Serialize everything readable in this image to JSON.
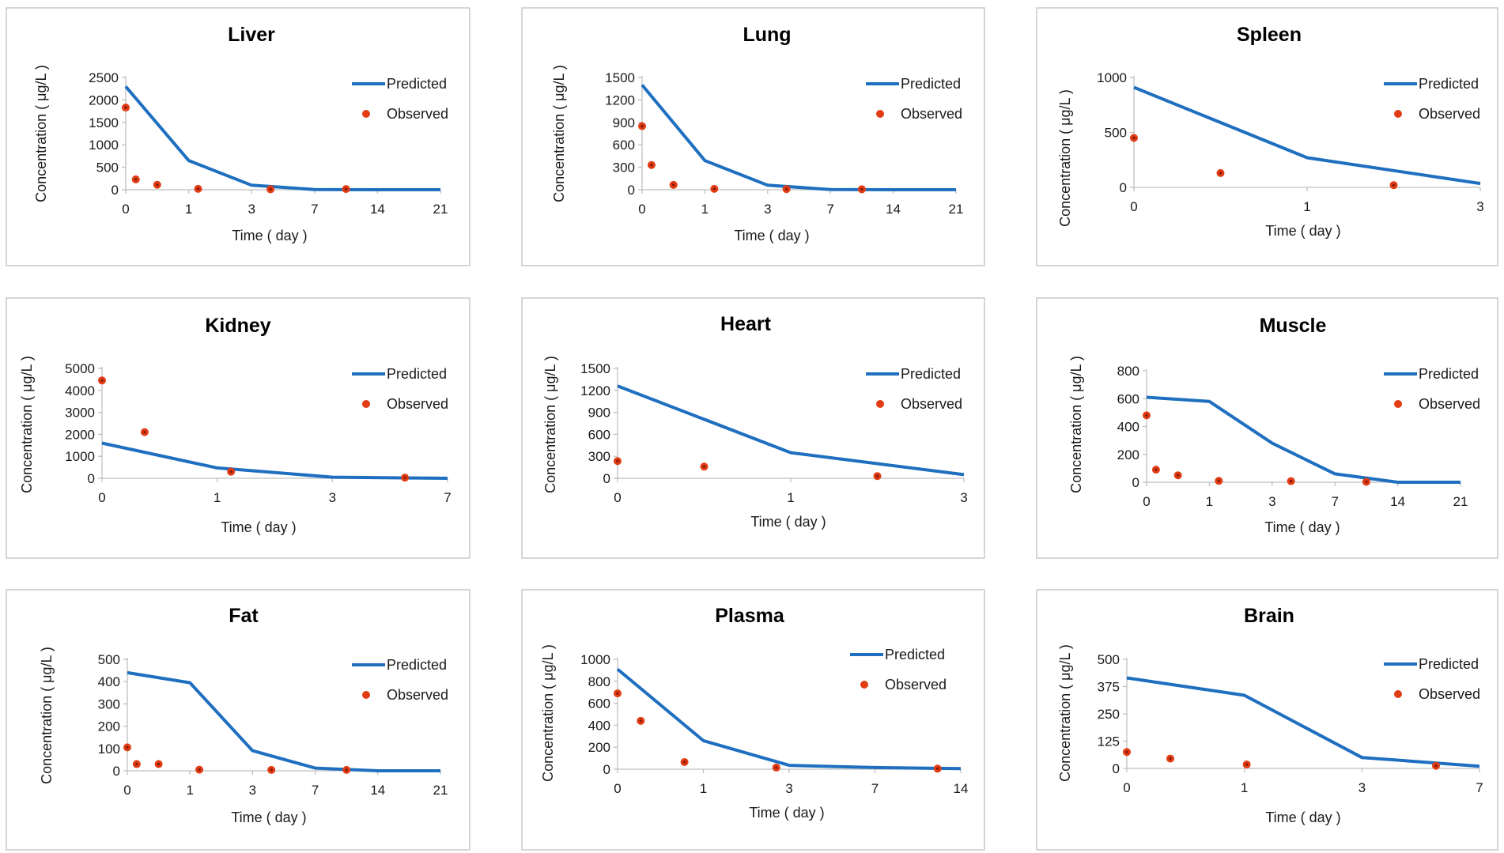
{
  "colors": {
    "predicted": "#1f6fc0",
    "observed": "#e23c14",
    "observed_dot_center": "#8a1c05",
    "frame": "#bfbfbf"
  },
  "chart_data": [
    {
      "type": "line",
      "title": "Liver",
      "xlabel": "Time ( day )",
      "ylabel": "Concentration ( μg/L )",
      "x_categories": [
        "0",
        "1",
        "3",
        "7",
        "14",
        "21"
      ],
      "y_ticks": [
        0,
        500,
        1000,
        1500,
        2000,
        2500
      ],
      "ylim": [
        0,
        2500
      ],
      "series": [
        {
          "name": "Predicted",
          "kind": "line",
          "points": [
            [
              0,
              2300
            ],
            [
              1,
              650
            ],
            [
              2,
              100
            ],
            [
              3,
              5
            ],
            [
              4,
              0
            ],
            [
              5,
              0
            ]
          ]
        },
        {
          "name": "Observed",
          "kind": "scatter",
          "points": [
            [
              0,
              1830
            ],
            [
              0.16,
              230
            ],
            [
              0.5,
              110
            ],
            [
              1.15,
              20
            ],
            [
              2.3,
              10
            ],
            [
              3.5,
              15
            ]
          ]
        }
      ]
    },
    {
      "type": "line",
      "title": "Lung",
      "xlabel": "Time ( day )",
      "ylabel": "Concentration ( μg/L )",
      "x_categories": [
        "0",
        "1",
        "3",
        "7",
        "14",
        "21"
      ],
      "y_ticks": [
        0,
        300,
        600,
        900,
        1200,
        1500
      ],
      "ylim": [
        0,
        1500
      ],
      "series": [
        {
          "name": "Predicted",
          "kind": "line",
          "points": [
            [
              0,
              1400
            ],
            [
              1,
              390
            ],
            [
              2,
              60
            ],
            [
              3,
              3
            ],
            [
              4,
              0
            ],
            [
              5,
              0
            ]
          ]
        },
        {
          "name": "Observed",
          "kind": "scatter",
          "points": [
            [
              0,
              850
            ],
            [
              0.15,
              330
            ],
            [
              0.5,
              65
            ],
            [
              1.15,
              12
            ],
            [
              2.3,
              8
            ],
            [
              3.5,
              6
            ]
          ]
        }
      ]
    },
    {
      "type": "line",
      "title": "Spleen",
      "xlabel": "Time ( day )",
      "ylabel": "Concentration ( μg/L )",
      "x_categories": [
        "0",
        "1",
        "3"
      ],
      "y_ticks": [
        0,
        500,
        1000
      ],
      "ylim": [
        0,
        1000
      ],
      "series": [
        {
          "name": "Predicted",
          "kind": "line",
          "points": [
            [
              0,
              910
            ],
            [
              1,
              270
            ],
            [
              2,
              35
            ]
          ]
        },
        {
          "name": "Observed",
          "kind": "scatter",
          "points": [
            [
              0,
              450
            ],
            [
              0.5,
              130
            ],
            [
              1.5,
              20
            ]
          ]
        }
      ]
    },
    {
      "type": "line",
      "title": "Kidney",
      "xlabel": "Time ( day )",
      "ylabel": "Concentration ( μg/L )",
      "x_categories": [
        "0",
        "1",
        "3",
        "7"
      ],
      "y_ticks": [
        0,
        1000,
        2000,
        3000,
        4000,
        5000
      ],
      "ylim": [
        0,
        5000
      ],
      "series": [
        {
          "name": "Predicted",
          "kind": "line",
          "points": [
            [
              0,
              1600
            ],
            [
              1,
              470
            ],
            [
              2,
              50
            ],
            [
              3,
              0
            ]
          ]
        },
        {
          "name": "Observed",
          "kind": "scatter",
          "points": [
            [
              0,
              4450
            ],
            [
              0.37,
              2100
            ],
            [
              1.12,
              300
            ],
            [
              2.63,
              30
            ]
          ]
        }
      ]
    },
    {
      "type": "line",
      "title": "Heart",
      "xlabel": "Time ( day )",
      "ylabel": "Concentration ( μg/L )",
      "x_categories": [
        "0",
        "1",
        "3"
      ],
      "y_ticks": [
        0,
        300,
        600,
        900,
        1200,
        1500
      ],
      "ylim": [
        0,
        1500
      ],
      "series": [
        {
          "name": "Predicted",
          "kind": "line",
          "points": [
            [
              0,
              1260
            ],
            [
              1,
              350
            ],
            [
              2,
              50
            ]
          ]
        },
        {
          "name": "Observed",
          "kind": "scatter",
          "points": [
            [
              0,
              235
            ],
            [
              0.5,
              160
            ],
            [
              1.5,
              30
            ]
          ]
        }
      ]
    },
    {
      "type": "line",
      "title": "Muscle",
      "xlabel": "Time ( day )",
      "ylabel": "Concentration ( μg/L )",
      "x_categories": [
        "0",
        "1",
        "3",
        "7",
        "14",
        "21"
      ],
      "y_ticks": [
        0,
        200,
        400,
        600,
        800
      ],
      "ylim": [
        0,
        800
      ],
      "series": [
        {
          "name": "Predicted",
          "kind": "line",
          "points": [
            [
              0,
              610
            ],
            [
              1,
              580
            ],
            [
              2,
              280
            ],
            [
              3,
              60
            ],
            [
              4,
              0
            ],
            [
              5,
              0
            ]
          ]
        },
        {
          "name": "Observed",
          "kind": "scatter",
          "points": [
            [
              0,
              480
            ],
            [
              0.15,
              90
            ],
            [
              0.5,
              50
            ],
            [
              1.15,
              10
            ],
            [
              2.3,
              8
            ],
            [
              3.5,
              3
            ]
          ]
        }
      ]
    },
    {
      "type": "line",
      "title": "Fat",
      "xlabel": "Time ( day )",
      "ylabel": "Concentration ( μg/L )",
      "x_categories": [
        "0",
        "1",
        "3",
        "7",
        "14",
        "21"
      ],
      "y_ticks": [
        0,
        100,
        200,
        300,
        400,
        500
      ],
      "ylim": [
        0,
        500
      ],
      "series": [
        {
          "name": "Predicted",
          "kind": "line",
          "points": [
            [
              0,
              440
            ],
            [
              1,
              395
            ],
            [
              2,
              90
            ],
            [
              3,
              12
            ],
            [
              4,
              0
            ],
            [
              5,
              0
            ]
          ]
        },
        {
          "name": "Observed",
          "kind": "scatter",
          "points": [
            [
              0,
              105
            ],
            [
              0.15,
              30
            ],
            [
              0.5,
              30
            ],
            [
              1.15,
              5
            ],
            [
              2.3,
              4
            ],
            [
              3.5,
              4
            ]
          ]
        }
      ]
    },
    {
      "type": "line",
      "title": "Plasma",
      "xlabel": "Time ( day )",
      "ylabel": "Concentration ( μg/L )",
      "x_categories": [
        "0",
        "1",
        "3",
        "7",
        "14"
      ],
      "y_ticks": [
        0,
        200,
        400,
        600,
        800,
        1000
      ],
      "ylim": [
        0,
        1000
      ],
      "series": [
        {
          "name": "Predicted",
          "kind": "line",
          "points": [
            [
              0,
              910
            ],
            [
              1,
              260
            ],
            [
              2,
              35
            ],
            [
              3,
              15
            ],
            [
              4,
              5
            ]
          ]
        },
        {
          "name": "Observed",
          "kind": "scatter",
          "points": [
            [
              0,
              690
            ],
            [
              0.27,
              440
            ],
            [
              0.78,
              65
            ],
            [
              1.85,
              15
            ],
            [
              3.73,
              5
            ]
          ]
        }
      ]
    },
    {
      "type": "line",
      "title": "Brain",
      "xlabel": "Time ( day )",
      "ylabel": "Concentration ( μg/L )",
      "x_categories": [
        "0",
        "1",
        "3",
        "7"
      ],
      "y_ticks": [
        0,
        125,
        250,
        375,
        500
      ],
      "ylim": [
        0,
        500
      ],
      "series": [
        {
          "name": "Predicted",
          "kind": "line",
          "points": [
            [
              0,
              415
            ],
            [
              1,
              335
            ],
            [
              2,
              50
            ],
            [
              3,
              10
            ]
          ]
        },
        {
          "name": "Observed",
          "kind": "scatter",
          "points": [
            [
              0,
              75
            ],
            [
              0.37,
              45
            ],
            [
              1.02,
              18
            ],
            [
              2.63,
              12
            ]
          ]
        }
      ]
    }
  ],
  "legend": {
    "predicted_label": "Predicted",
    "observed_label": "Observed"
  }
}
